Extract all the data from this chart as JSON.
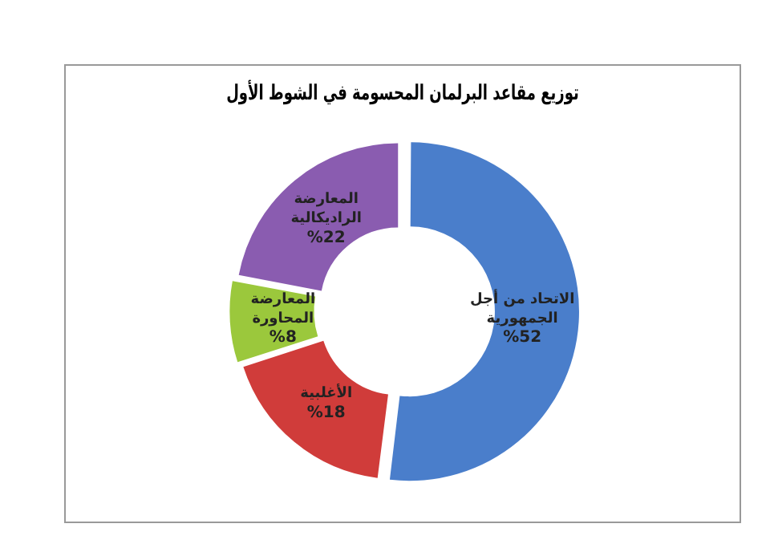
{
  "chart_data": {
    "type": "donut",
    "title": "توزيع مقاعد البرلمان المحسومة في الشوط الأول",
    "categories": [
      "الاتحاد من أجل الجمهورية",
      "الأغلبية",
      "المعارضة المحاورة",
      "المعارضة الراديكالية"
    ],
    "values": [
      52,
      18,
      8,
      22
    ],
    "colors": [
      "#4a7ecb",
      "#d03c3a",
      "#9bc83c",
      "#8a5cb0"
    ],
    "value_labels": [
      "%52",
      "%18",
      "%8",
      "%22"
    ],
    "legend": false
  }
}
